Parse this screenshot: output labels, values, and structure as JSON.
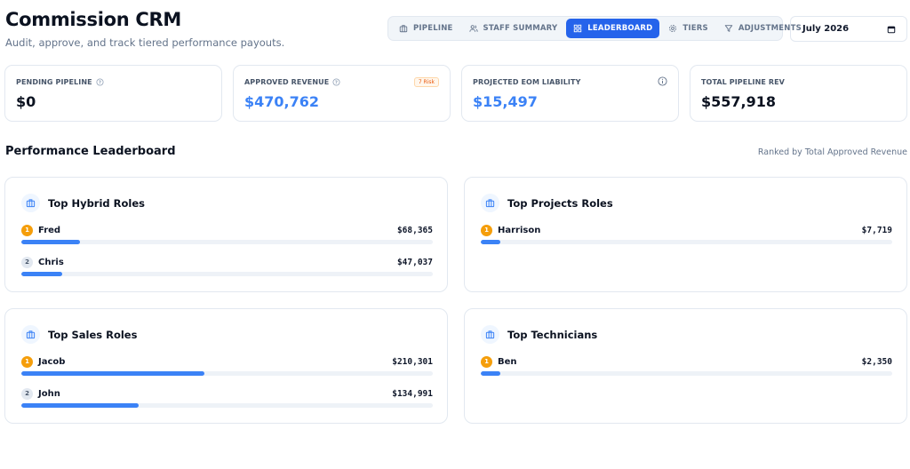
{
  "header": {
    "title": "Commission CRM",
    "subtitle": "Audit, approve, and track tiered performance payouts."
  },
  "tabs": [
    {
      "label": "PIPELINE",
      "icon": "briefcase-icon",
      "active": false
    },
    {
      "label": "STAFF SUMMARY",
      "icon": "users-icon",
      "active": false
    },
    {
      "label": "LEADERBOARD",
      "icon": "grid-icon",
      "active": true
    },
    {
      "label": "TIERS",
      "icon": "gear-icon",
      "active": false
    },
    {
      "label": "ADJUSTMENTS",
      "icon": "filter-icon",
      "active": false
    }
  ],
  "date_picker": {
    "value": "July 2026",
    "icon": "calendar-icon"
  },
  "stats": {
    "pending": {
      "label": "PENDING PIPELINE",
      "value": "$0"
    },
    "approved": {
      "label": "APPROVED REVENUE",
      "value": "$470,762",
      "badge": "7 Risk"
    },
    "projected": {
      "label": "PROJECTED EOM LIABILITY",
      "value": "$15,497"
    },
    "total": {
      "label": "TOTAL PIPELINE REV",
      "value": "$557,918"
    }
  },
  "leaderboard": {
    "title": "Performance Leaderboard",
    "subtitle": "Ranked by Total Approved Revenue",
    "accent": "#3b82f6",
    "cards": {
      "hybrid": {
        "title": "Top Hybrid Roles",
        "rows": [
          {
            "rank": "1",
            "name": "Fred",
            "amount": "$68,365",
            "share": 0.143
          },
          {
            "rank": "2",
            "name": "Chris",
            "amount": "$47,037",
            "share": 0.099
          }
        ]
      },
      "projects": {
        "title": "Top Projects Roles",
        "rows": [
          {
            "rank": "1",
            "name": "Harrison",
            "amount": "$7,719",
            "share": 0.048
          }
        ]
      },
      "sales": {
        "title": "Top Sales Roles",
        "rows": [
          {
            "rank": "1",
            "name": "Jacob",
            "amount": "$210,301",
            "share": 0.445
          },
          {
            "rank": "2",
            "name": "John",
            "amount": "$134,991",
            "share": 0.285
          }
        ]
      },
      "technicians": {
        "title": "Top Technicians",
        "rows": [
          {
            "rank": "1",
            "name": "Ben",
            "amount": "$2,350",
            "share": 0.048
          }
        ]
      }
    }
  }
}
